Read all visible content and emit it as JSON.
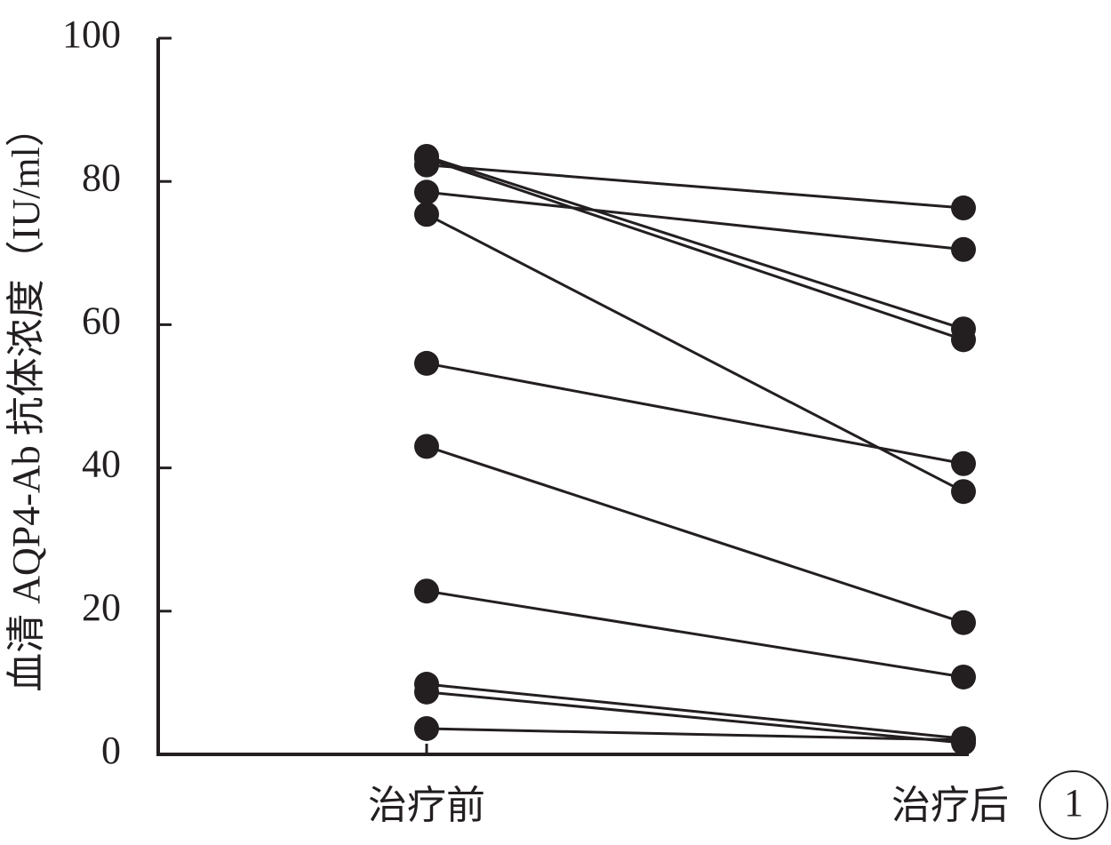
{
  "chart_data": {
    "type": "line",
    "y_label": "血清 AQP4-Ab 抗体浓度（IU/ml）",
    "panel_label": "1",
    "categories": [
      "治疗前",
      "治疗后"
    ],
    "color": "#231f20",
    "marker": "circle",
    "ylim": [
      0,
      100
    ],
    "yticks": [
      0,
      20,
      40,
      60,
      80,
      100
    ],
    "series": [
      {
        "values": [
          82.3,
          76.3
        ]
      },
      {
        "values": [
          83.5,
          59.4
        ]
      },
      {
        "values": [
          83.2,
          57.9
        ]
      },
      {
        "values": [
          78.5,
          70.5
        ]
      },
      {
        "values": [
          75.4,
          36.7
        ]
      },
      {
        "values": [
          54.6,
          40.6
        ]
      },
      {
        "values": [
          43.0,
          18.4
        ]
      },
      {
        "values": [
          22.8,
          10.8
        ]
      },
      {
        "values": [
          9.8,
          2.2
        ]
      },
      {
        "values": [
          8.7,
          1.6
        ]
      },
      {
        "values": [
          3.6,
          2.0
        ]
      }
    ]
  }
}
